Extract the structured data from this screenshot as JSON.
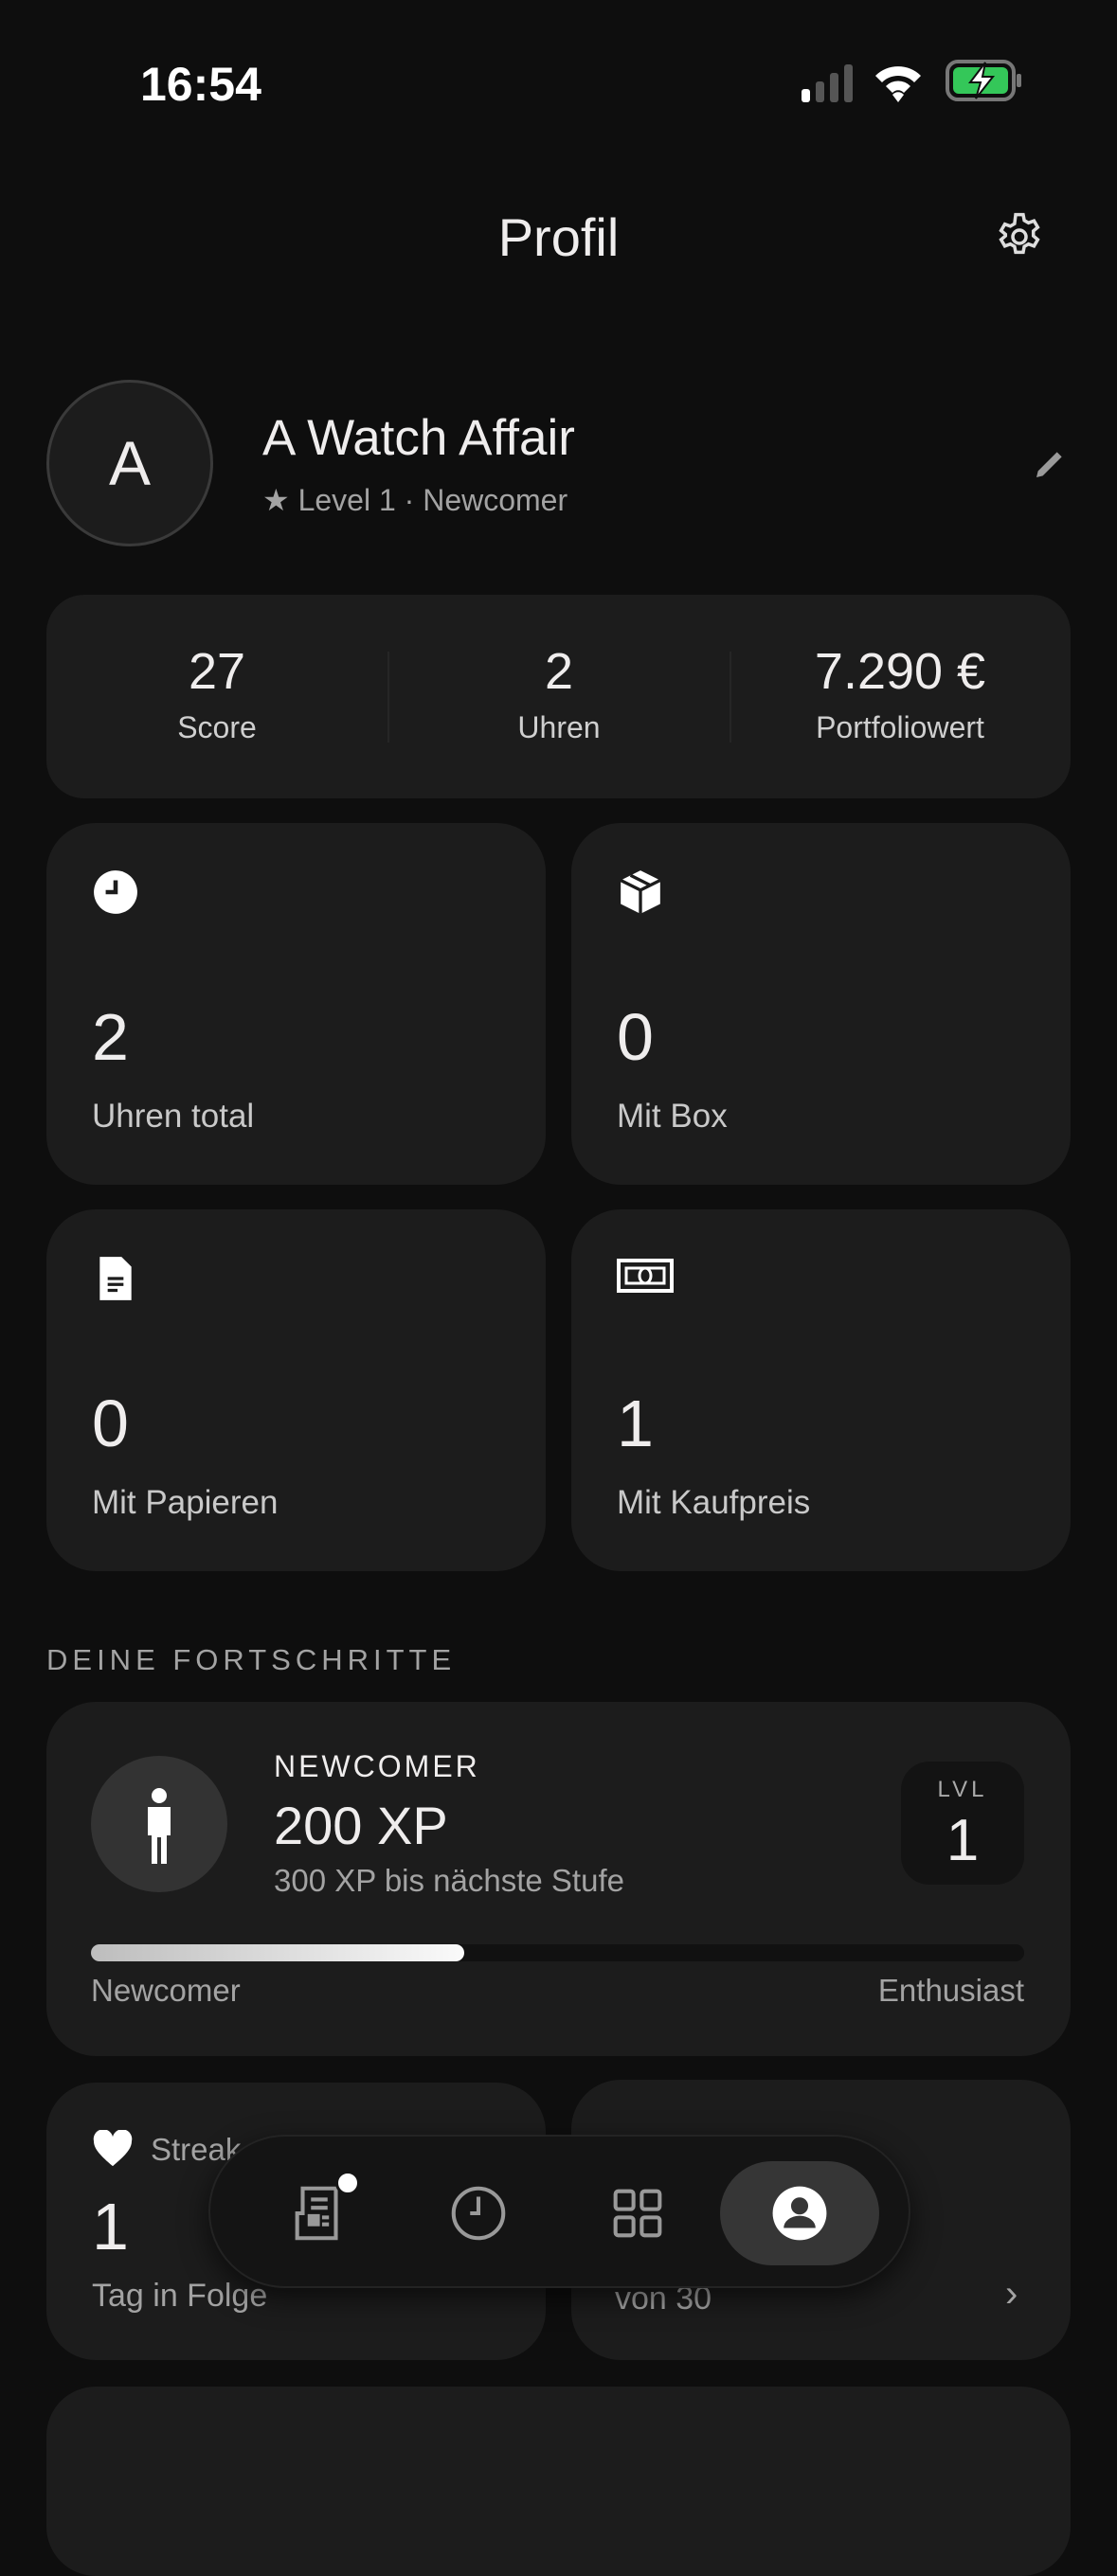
{
  "status_bar": {
    "time": "16:54",
    "battery_color": "#34c759"
  },
  "header": {
    "title": "Profil",
    "settings_icon": "gear-icon"
  },
  "profile": {
    "avatar_initial": "A",
    "name": "A Watch Affair",
    "subtitle": "Level 1 · Newcomer"
  },
  "stats": [
    {
      "value": "27",
      "label": "Score"
    },
    {
      "value": "2",
      "label": "Uhren"
    },
    {
      "value": "7.290 €",
      "label": "Portfoliowert"
    }
  ],
  "grid": [
    {
      "icon": "clock-icon",
      "value": "2",
      "label": "Uhren total"
    },
    {
      "icon": "box-icon",
      "value": "0",
      "label": "Mit Box"
    },
    {
      "icon": "document-icon",
      "value": "0",
      "label": "Mit Papieren"
    },
    {
      "icon": "banknote-icon",
      "value": "1",
      "label": "Mit Kaufpreis"
    }
  ],
  "progress": {
    "section_title": "DEINE FORTSCHRITTE",
    "rank": "NEWCOMER",
    "xp": "200 XP",
    "next": "300 XP bis nächste Stufe",
    "level_label": "LVL",
    "level": "1",
    "percent": 40,
    "from_label": "Newcomer",
    "to_label": "Enthusiast"
  },
  "streak": {
    "title": "Streak",
    "value": "1",
    "label": "Tag in Folge"
  },
  "achievements": {
    "sub": "von 30"
  },
  "nav": [
    {
      "icon": "news-icon",
      "badge": true
    },
    {
      "icon": "clock-icon"
    },
    {
      "icon": "grid-icon"
    },
    {
      "icon": "profile-icon",
      "active": true
    }
  ]
}
